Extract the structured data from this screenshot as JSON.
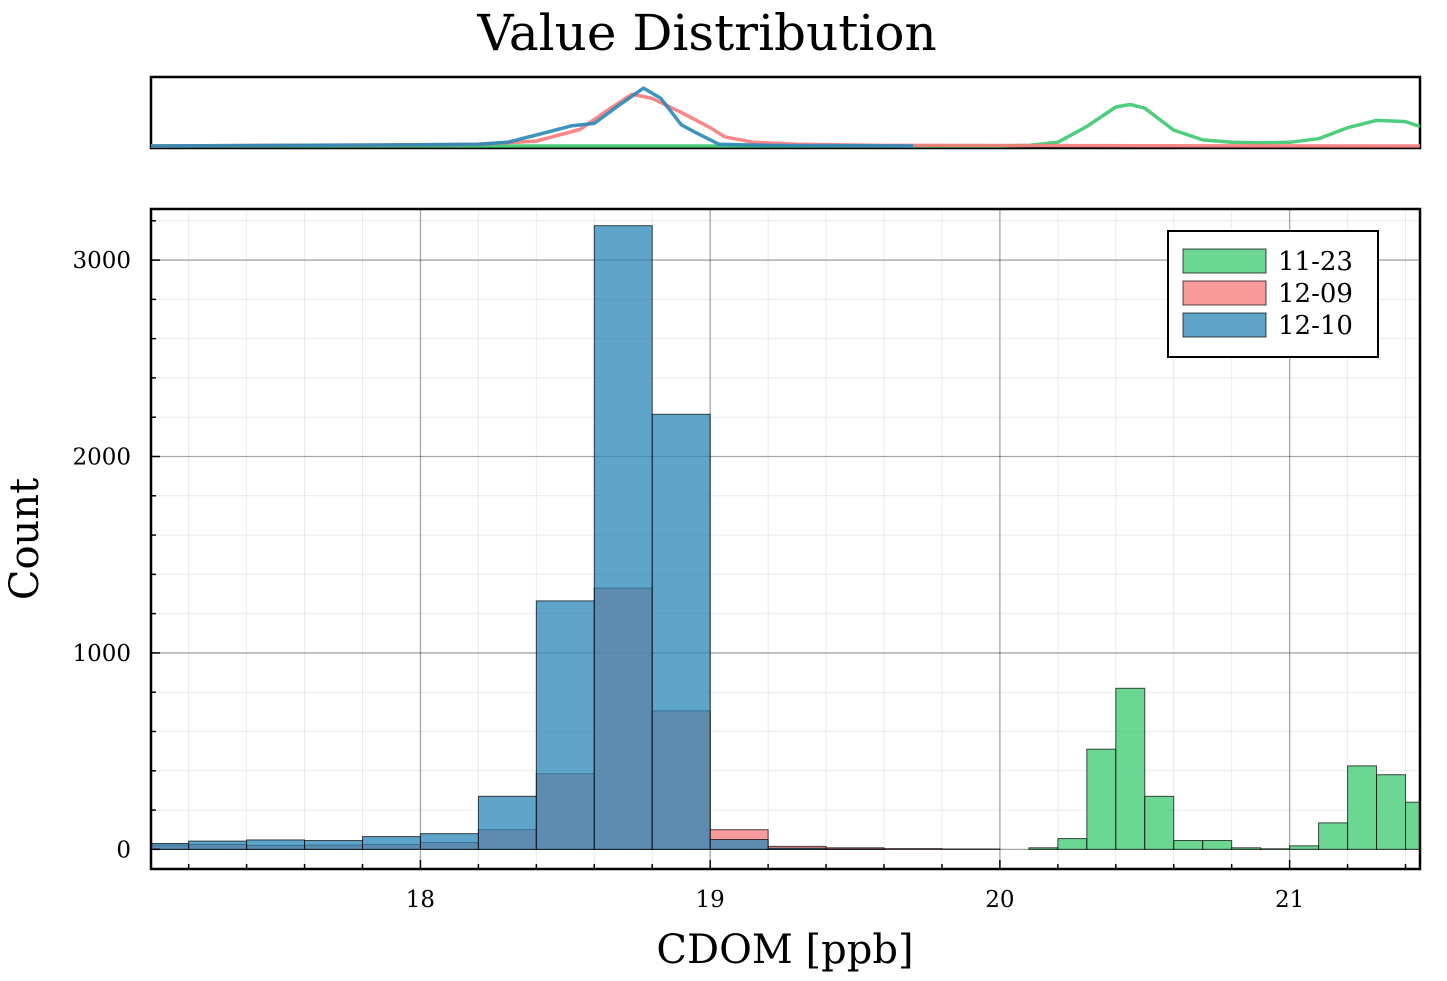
{
  "chart_data": {
    "type": "bar",
    "title": "Value Distribution",
    "xlabel": "CDOM [ppb]",
    "ylabel": "Count",
    "xlim": [
      17.07,
      21.45
    ],
    "ylim": [
      -100,
      3260
    ],
    "x_ticks": [
      18,
      19,
      20,
      21
    ],
    "y_ticks": [
      0,
      1000,
      2000,
      3000
    ],
    "grid": true,
    "legend_position": "top-right",
    "bin_width": 0.2,
    "bin_edges": [
      17.0,
      17.2,
      17.4,
      17.6,
      17.8,
      18.0,
      18.2,
      18.4,
      18.6,
      18.8,
      19.0,
      19.2,
      19.4,
      19.6,
      19.8,
      20.0,
      20.2,
      20.3,
      20.4,
      20.5,
      20.6,
      20.7,
      20.8,
      20.9,
      21.0,
      21.1,
      21.2,
      21.3,
      21.4,
      21.5
    ],
    "series": [
      {
        "name": "11-23",
        "color": "#3bc86f",
        "bars": [
          {
            "x0": 20.1,
            "x1": 20.2,
            "value": 8
          },
          {
            "x0": 20.2,
            "x1": 20.3,
            "value": 55
          },
          {
            "x0": 20.3,
            "x1": 20.4,
            "value": 510
          },
          {
            "x0": 20.4,
            "x1": 20.5,
            "value": 820
          },
          {
            "x0": 20.5,
            "x1": 20.6,
            "value": 270
          },
          {
            "x0": 20.6,
            "x1": 20.7,
            "value": 45
          },
          {
            "x0": 20.7,
            "x1": 20.8,
            "value": 45
          },
          {
            "x0": 20.8,
            "x1": 20.9,
            "value": 8
          },
          {
            "x0": 20.9,
            "x1": 21.0,
            "value": 3
          },
          {
            "x0": 21.0,
            "x1": 21.1,
            "value": 18
          },
          {
            "x0": 21.1,
            "x1": 21.2,
            "value": 135
          },
          {
            "x0": 21.2,
            "x1": 21.3,
            "value": 425
          },
          {
            "x0": 21.3,
            "x1": 21.4,
            "value": 380
          },
          {
            "x0": 21.4,
            "x1": 21.5,
            "value": 240
          }
        ]
      },
      {
        "name": "12-09",
        "color": "#f87a7a",
        "bars": [
          {
            "x0": 17.0,
            "x1": 17.2,
            "value": 22
          },
          {
            "x0": 17.2,
            "x1": 17.4,
            "value": 25
          },
          {
            "x0": 17.4,
            "x1": 17.6,
            "value": 20
          },
          {
            "x0": 17.6,
            "x1": 17.8,
            "value": 22
          },
          {
            "x0": 17.8,
            "x1": 18.0,
            "value": 25
          },
          {
            "x0": 18.0,
            "x1": 18.2,
            "value": 35
          },
          {
            "x0": 18.2,
            "x1": 18.4,
            "value": 100
          },
          {
            "x0": 18.4,
            "x1": 18.6,
            "value": 385
          },
          {
            "x0": 18.6,
            "x1": 18.8,
            "value": 1330
          },
          {
            "x0": 18.8,
            "x1": 19.0,
            "value": 705
          },
          {
            "x0": 19.0,
            "x1": 19.2,
            "value": 100
          },
          {
            "x0": 19.2,
            "x1": 19.4,
            "value": 15
          },
          {
            "x0": 19.4,
            "x1": 19.6,
            "value": 8
          },
          {
            "x0": 19.6,
            "x1": 19.8,
            "value": 4
          },
          {
            "x0": 19.8,
            "x1": 20.0,
            "value": 2
          }
        ]
      },
      {
        "name": "12-10",
        "color": "#2a87b8",
        "bars": [
          {
            "x0": 17.0,
            "x1": 17.2,
            "value": 30
          },
          {
            "x0": 17.2,
            "x1": 17.4,
            "value": 42
          },
          {
            "x0": 17.4,
            "x1": 17.6,
            "value": 48
          },
          {
            "x0": 17.6,
            "x1": 17.8,
            "value": 45
          },
          {
            "x0": 17.8,
            "x1": 18.0,
            "value": 65
          },
          {
            "x0": 18.0,
            "x1": 18.2,
            "value": 80
          },
          {
            "x0": 18.2,
            "x1": 18.4,
            "value": 270
          },
          {
            "x0": 18.4,
            "x1": 18.6,
            "value": 1265
          },
          {
            "x0": 18.6,
            "x1": 18.8,
            "value": 3175
          },
          {
            "x0": 18.8,
            "x1": 19.0,
            "value": 2215
          },
          {
            "x0": 19.0,
            "x1": 19.2,
            "value": 50
          },
          {
            "x0": 19.2,
            "x1": 19.4,
            "value": 6
          },
          {
            "x0": 19.4,
            "x1": 19.6,
            "value": 2
          }
        ]
      }
    ],
    "marginal_density": {
      "type": "line",
      "series": [
        {
          "name": "11-23",
          "x": [
            17.07,
            20.0,
            20.1,
            20.2,
            20.3,
            20.4,
            20.45,
            20.5,
            20.6,
            20.7,
            20.8,
            20.9,
            21.0,
            21.1,
            21.2,
            21.3,
            21.4,
            21.45
          ],
          "y": [
            0.0,
            0.0,
            0.01,
            0.06,
            0.32,
            0.64,
            0.68,
            0.62,
            0.26,
            0.1,
            0.06,
            0.05,
            0.06,
            0.12,
            0.3,
            0.42,
            0.4,
            0.32
          ]
        },
        {
          "name": "12-09",
          "x": [
            17.07,
            17.5,
            18.0,
            18.2,
            18.4,
            18.55,
            18.65,
            18.73,
            18.8,
            18.9,
            19.0,
            19.05,
            19.15,
            19.3,
            19.6,
            21.45
          ],
          "y": [
            0.0,
            0.01,
            0.02,
            0.03,
            0.08,
            0.27,
            0.6,
            0.85,
            0.78,
            0.55,
            0.3,
            0.15,
            0.06,
            0.03,
            0.01,
            0.0
          ]
        },
        {
          "name": "12-10",
          "x": [
            17.07,
            17.5,
            18.0,
            18.2,
            18.3,
            18.4,
            18.52,
            18.6,
            18.68,
            18.77,
            18.83,
            18.9,
            18.95,
            19.03,
            19.2,
            19.7
          ],
          "y": [
            0.0,
            0.01,
            0.02,
            0.03,
            0.06,
            0.18,
            0.33,
            0.37,
            0.65,
            0.95,
            0.78,
            0.35,
            0.22,
            0.03,
            0.01,
            0.0
          ]
        }
      ]
    }
  }
}
